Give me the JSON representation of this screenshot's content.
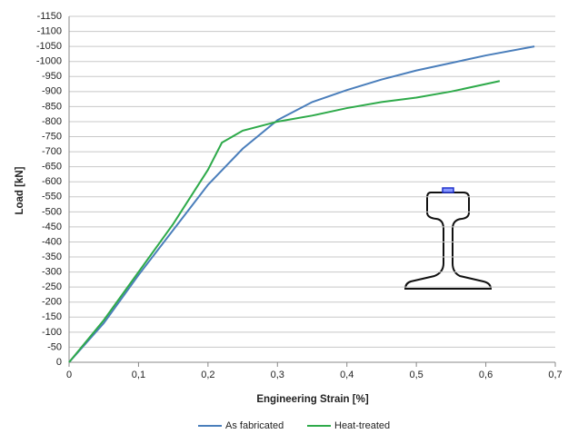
{
  "chart_data": {
    "type": "line",
    "x_label": "Engineering Strain [%]",
    "y_label": "Load [kN]",
    "xlim": [
      0,
      0.7
    ],
    "xticks": [
      0,
      {
        "value": 0.1,
        "label": "0,1"
      },
      {
        "value": 0.2,
        "label": "0,2"
      },
      {
        "value": 0.3,
        "label": "0,3"
      },
      {
        "value": 0.4,
        "label": "0,4"
      },
      {
        "value": 0.5,
        "label": "0,5"
      },
      {
        "value": 0.6,
        "label": "0,6"
      },
      {
        "value": 0.7,
        "label": "0,7"
      }
    ],
    "ylim": [
      0,
      -1150
    ],
    "yticks": [
      0,
      -50,
      -100,
      -150,
      -200,
      -250,
      -300,
      -350,
      -400,
      -450,
      -500,
      -550,
      -600,
      -650,
      -700,
      -750,
      -800,
      -850,
      -900,
      -950,
      -1000,
      -1050,
      -1100,
      -1150
    ],
    "grid": true,
    "legend": "bottom",
    "series": [
      {
        "name": "As fabricated",
        "color": "#4a7ebb",
        "x": [
          0,
          0.05,
          0.1,
          0.15,
          0.2,
          0.25,
          0.3,
          0.35,
          0.4,
          0.45,
          0.5,
          0.55,
          0.6,
          0.67
        ],
        "values": [
          0,
          -130,
          -290,
          -440,
          -590,
          -710,
          -805,
          -865,
          -905,
          -940,
          -970,
          -995,
          -1020,
          -1050
        ]
      },
      {
        "name": "Heat-treated",
        "color": "#2eaa4a",
        "x": [
          0,
          0.05,
          0.1,
          0.15,
          0.2,
          0.22,
          0.25,
          0.3,
          0.35,
          0.4,
          0.45,
          0.5,
          0.55,
          0.62
        ],
        "values": [
          0,
          -140,
          -300,
          -460,
          -640,
          -730,
          -770,
          -800,
          -820,
          -845,
          -865,
          -880,
          -900,
          -935
        ]
      }
    ]
  }
}
